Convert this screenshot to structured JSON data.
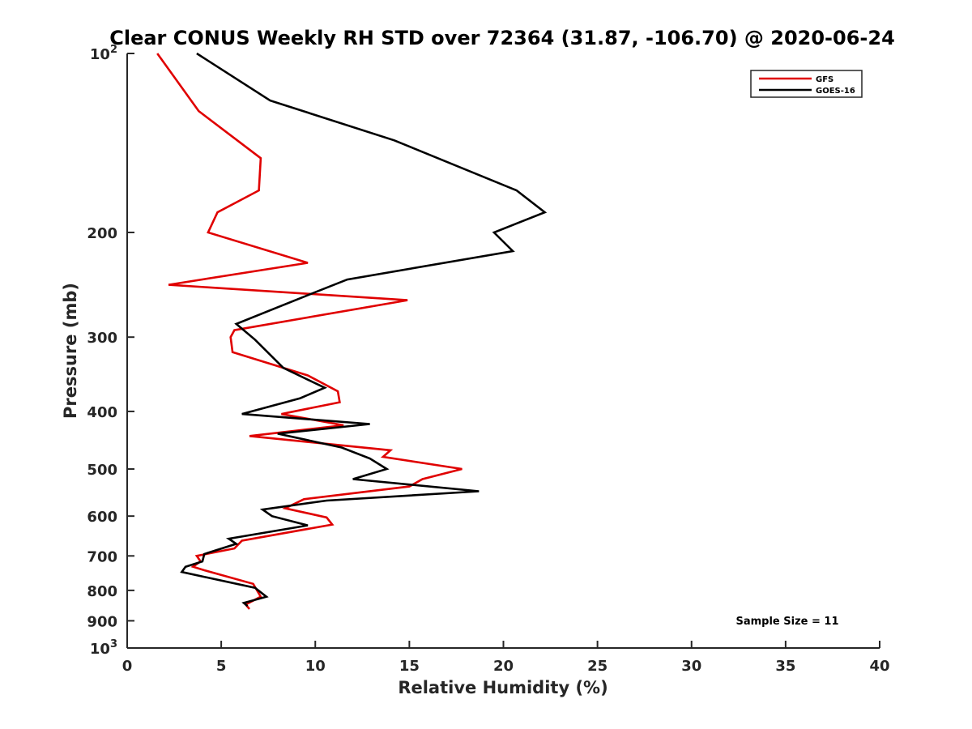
{
  "chart_data": {
    "type": "line",
    "title": "Clear CONUS Weekly RH STD over 72364 (31.87, -106.70) @ 2020-06-24",
    "xlabel": "Relative Humidity (%)",
    "ylabel": "Pressure (mb)",
    "xlim": [
      0,
      40
    ],
    "ylim": [
      100,
      1000
    ],
    "y_scale": "log",
    "y_reversed": true,
    "grid": false,
    "x_ticks": [
      0,
      5,
      10,
      15,
      20,
      25,
      30,
      35,
      40
    ],
    "x_tick_labels": [
      "0",
      "5",
      "10",
      "15",
      "20",
      "25",
      "30",
      "35",
      "40"
    ],
    "y_ticks": [
      100,
      200,
      300,
      400,
      500,
      600,
      700,
      800,
      900,
      1000
    ],
    "y_tick_labels": [
      {
        "base": "10",
        "exp": "2"
      },
      {
        "base": "200",
        "exp": ""
      },
      {
        "base": "300",
        "exp": ""
      },
      {
        "base": "400",
        "exp": ""
      },
      {
        "base": "500",
        "exp": ""
      },
      {
        "base": "600",
        "exp": ""
      },
      {
        "base": "700",
        "exp": ""
      },
      {
        "base": "800",
        "exp": ""
      },
      {
        "base": "900",
        "exp": ""
      },
      {
        "base": "10",
        "exp": "3"
      }
    ],
    "legend_position": "top-right",
    "annotation": "Sample Size = 11",
    "series": [
      {
        "name": "GFS",
        "color": "#e00000",
        "points": [
          [
            1.6,
            100
          ],
          [
            3.8,
            125
          ],
          [
            7.1,
            150
          ],
          [
            7.0,
            170
          ],
          [
            4.8,
            185
          ],
          [
            4.3,
            200
          ],
          [
            9.6,
            225
          ],
          [
            2.2,
            245
          ],
          [
            14.9,
            260
          ],
          [
            5.7,
            292
          ],
          [
            5.5,
            300
          ],
          [
            5.6,
            318
          ],
          [
            9.6,
            348
          ],
          [
            11.2,
            370
          ],
          [
            11.3,
            386
          ],
          [
            8.2,
            404
          ],
          [
            11.5,
            422
          ],
          [
            6.5,
            440
          ],
          [
            14.0,
            465
          ],
          [
            13.6,
            477
          ],
          [
            17.8,
            500
          ],
          [
            15.7,
            520
          ],
          [
            15.0,
            535
          ],
          [
            9.4,
            562
          ],
          [
            8.4,
            582
          ],
          [
            10.6,
            603
          ],
          [
            10.9,
            620
          ],
          [
            6.1,
            660
          ],
          [
            5.7,
            680
          ],
          [
            3.7,
            700
          ],
          [
            3.9,
            715
          ],
          [
            3.5,
            730
          ],
          [
            4.1,
            740
          ],
          [
            6.7,
            780
          ],
          [
            7.1,
            820
          ],
          [
            6.3,
            845
          ],
          [
            6.5,
            860
          ]
        ]
      },
      {
        "name": "GOES-16",
        "color": "#000000",
        "points": [
          [
            3.7,
            100
          ],
          [
            7.6,
            120
          ],
          [
            14.2,
            140
          ],
          [
            20.7,
            170
          ],
          [
            22.2,
            185
          ],
          [
            19.5,
            200
          ],
          [
            20.5,
            215
          ],
          [
            11.7,
            240
          ],
          [
            9.6,
            255
          ],
          [
            5.8,
            285
          ],
          [
            6.8,
            303
          ],
          [
            8.3,
            338
          ],
          [
            10.5,
            365
          ],
          [
            9.2,
            380
          ],
          [
            6.1,
            404
          ],
          [
            12.9,
            420
          ],
          [
            8.0,
            436
          ],
          [
            11.4,
            460
          ],
          [
            12.9,
            480
          ],
          [
            13.8,
            500
          ],
          [
            12.0,
            520
          ],
          [
            18.7,
            545
          ],
          [
            10.6,
            565
          ],
          [
            7.2,
            585
          ],
          [
            7.7,
            600
          ],
          [
            9.6,
            622
          ],
          [
            5.4,
            655
          ],
          [
            5.8,
            668
          ],
          [
            4.1,
            695
          ],
          [
            4.0,
            715
          ],
          [
            3.1,
            730
          ],
          [
            2.9,
            745
          ],
          [
            6.8,
            792
          ],
          [
            7.4,
            820
          ],
          [
            6.2,
            840
          ],
          [
            6.4,
            850
          ]
        ]
      }
    ]
  }
}
